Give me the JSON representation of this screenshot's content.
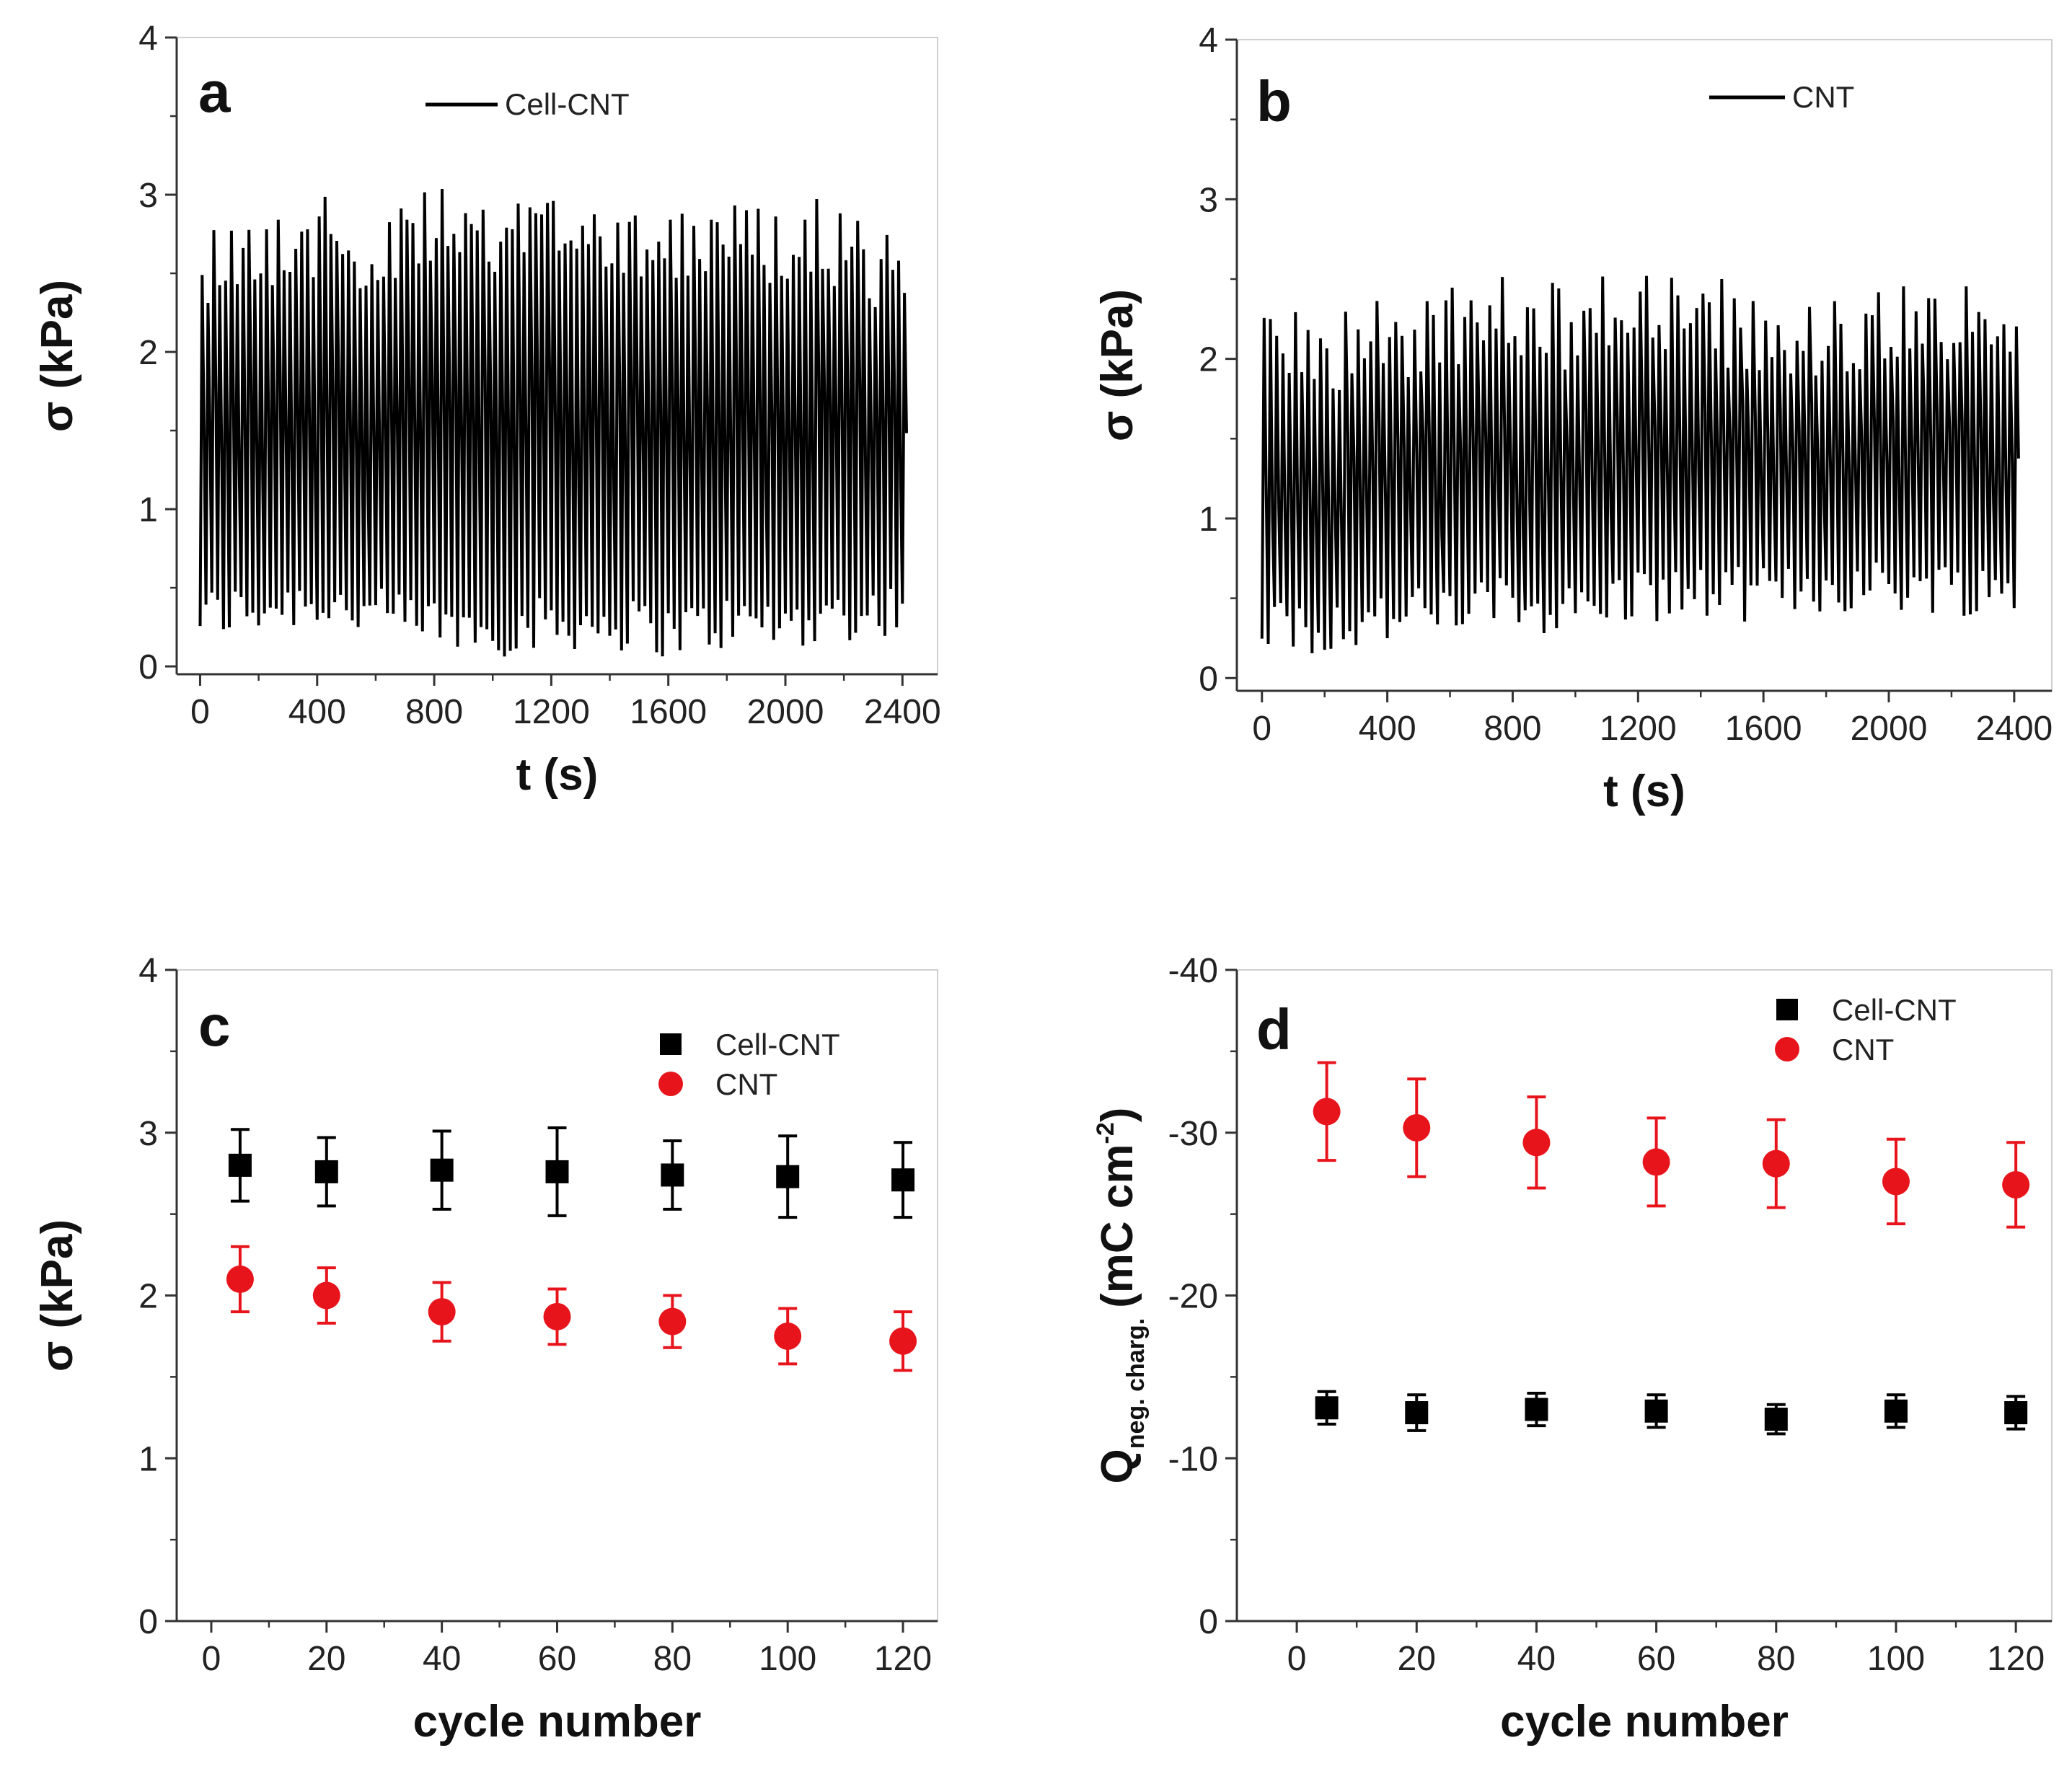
{
  "chart_data": [
    {
      "id": "a",
      "type": "line",
      "panel_label": "a",
      "xlabel": "t (s)",
      "ylabel": "σ (kPa)",
      "xlim": [
        -80,
        2520
      ],
      "ylim": [
        -0.05,
        4
      ],
      "xticks": [
        "0",
        "400",
        "800",
        "1200",
        "1600",
        "2000",
        "2400"
      ],
      "xtick_values": [
        0,
        400,
        800,
        1200,
        1600,
        2000,
        2400
      ],
      "yticks": [
        "0",
        "1",
        "2",
        "3",
        "4"
      ],
      "ytick_values": [
        0,
        1,
        2,
        3,
        4
      ],
      "legend": "top-center",
      "series": [
        {
          "name": "Cell-CNT",
          "color": "#000000",
          "kind": "oscillating stress trace",
          "t_start": 0,
          "t_end": 2400,
          "cycle_period_s": 20,
          "envelope_t": [
            0,
            200,
            400,
            600,
            800,
            1000,
            1200,
            1400,
            1600,
            1800,
            2000,
            2200,
            2400
          ],
          "envelope_max": [
            2.85,
            2.95,
            3.0,
            2.9,
            3.05,
            2.95,
            3.1,
            3.05,
            3.0,
            2.95,
            3.0,
            2.95,
            2.7
          ],
          "envelope_min": [
            0.15,
            0.2,
            0.25,
            0.15,
            0.1,
            0.05,
            0.1,
            0.1,
            0.05,
            0.1,
            0.1,
            0.15,
            0.2
          ]
        }
      ]
    },
    {
      "id": "b",
      "type": "line",
      "panel_label": "b",
      "xlabel": "t (s)",
      "ylabel": "σ (kPa)",
      "xlim": [
        -80,
        2520
      ],
      "ylim": [
        -0.08,
        4
      ],
      "xticks": [
        "0",
        "400",
        "800",
        "1200",
        "1600",
        "2000",
        "2400"
      ],
      "xtick_values": [
        0,
        400,
        800,
        1200,
        1600,
        2000,
        2400
      ],
      "yticks": [
        "0",
        "1",
        "2",
        "3",
        "4"
      ],
      "ytick_values": [
        0,
        1,
        2,
        3,
        4
      ],
      "legend": "top-right",
      "series": [
        {
          "name": "CNT",
          "color": "#000000",
          "kind": "oscillating stress trace",
          "t_start": 0,
          "t_end": 2400,
          "cycle_period_s": 20,
          "envelope_t": [
            0,
            200,
            400,
            600,
            800,
            1000,
            1200,
            1400,
            1600,
            1800,
            2000,
            2200,
            2400
          ],
          "envelope_max": [
            2.3,
            2.3,
            2.4,
            2.45,
            2.55,
            2.45,
            2.65,
            2.55,
            2.4,
            2.4,
            2.5,
            2.5,
            2.3
          ],
          "envelope_min": [
            0.15,
            0.15,
            0.2,
            0.25,
            0.3,
            0.25,
            0.35,
            0.35,
            0.35,
            0.4,
            0.4,
            0.4,
            0.35
          ]
        }
      ]
    },
    {
      "id": "c",
      "type": "scatter",
      "panel_label": "c",
      "xlabel": "cycle number",
      "ylabel": "σ (kPa)",
      "xlim": [
        -6,
        126
      ],
      "ylim": [
        0,
        4
      ],
      "xticks": [
        "0",
        "20",
        "40",
        "60",
        "80",
        "100",
        "120"
      ],
      "xtick_values": [
        0,
        20,
        40,
        60,
        80,
        100,
        120
      ],
      "yticks": [
        "0",
        "1",
        "2",
        "3",
        "4"
      ],
      "ytick_values": [
        0,
        1,
        2,
        3,
        4
      ],
      "legend": "top-right",
      "x": [
        5,
        20,
        40,
        60,
        80,
        100,
        120
      ],
      "series": [
        {
          "name": "Cell-CNT",
          "color": "#000000",
          "marker": "square",
          "values": [
            2.8,
            2.76,
            2.77,
            2.76,
            2.74,
            2.73,
            2.71
          ],
          "errors": [
            0.22,
            0.21,
            0.24,
            0.27,
            0.21,
            0.25,
            0.23
          ]
        },
        {
          "name": "CNT",
          "color": "#e8141c",
          "marker": "circle",
          "values": [
            2.1,
            2.0,
            1.9,
            1.87,
            1.84,
            1.75,
            1.72
          ],
          "errors": [
            0.2,
            0.17,
            0.18,
            0.17,
            0.16,
            0.17,
            0.18
          ]
        }
      ]
    },
    {
      "id": "d",
      "type": "scatter",
      "panel_label": "d",
      "xlabel": "cycle number",
      "ylabel_main": "Q",
      "ylabel_sub": "neg. charg.",
      "ylabel_unit": "(mC cm",
      "ylabel_sup": "-2",
      "ylabel_close": ")",
      "xlim": [
        -10,
        126
      ],
      "ylim": [
        0,
        -40
      ],
      "xticks": [
        "0",
        "20",
        "40",
        "60",
        "80",
        "100",
        "120"
      ],
      "xtick_values": [
        0,
        20,
        40,
        60,
        80,
        100,
        120
      ],
      "yticks": [
        "0",
        "-10",
        "-20",
        "-30",
        "-40"
      ],
      "ytick_values": [
        0,
        -10,
        -20,
        -30,
        -40
      ],
      "legend": "top-right",
      "x": [
        5,
        20,
        40,
        60,
        80,
        100,
        120
      ],
      "series": [
        {
          "name": "Cell-CNT",
          "color": "#000000",
          "marker": "square",
          "values": [
            -13.1,
            -12.8,
            -13.0,
            -12.9,
            -12.4,
            -12.9,
            -12.8
          ],
          "errors": [
            1.0,
            1.1,
            1.0,
            1.0,
            0.9,
            1.0,
            1.0
          ]
        },
        {
          "name": "CNT",
          "color": "#e8141c",
          "marker": "circle",
          "values": [
            -31.3,
            -30.3,
            -29.4,
            -28.2,
            -28.1,
            -27.0,
            -26.8
          ],
          "errors": [
            3.0,
            3.0,
            2.8,
            2.7,
            2.7,
            2.6,
            2.6
          ]
        }
      ]
    }
  ]
}
